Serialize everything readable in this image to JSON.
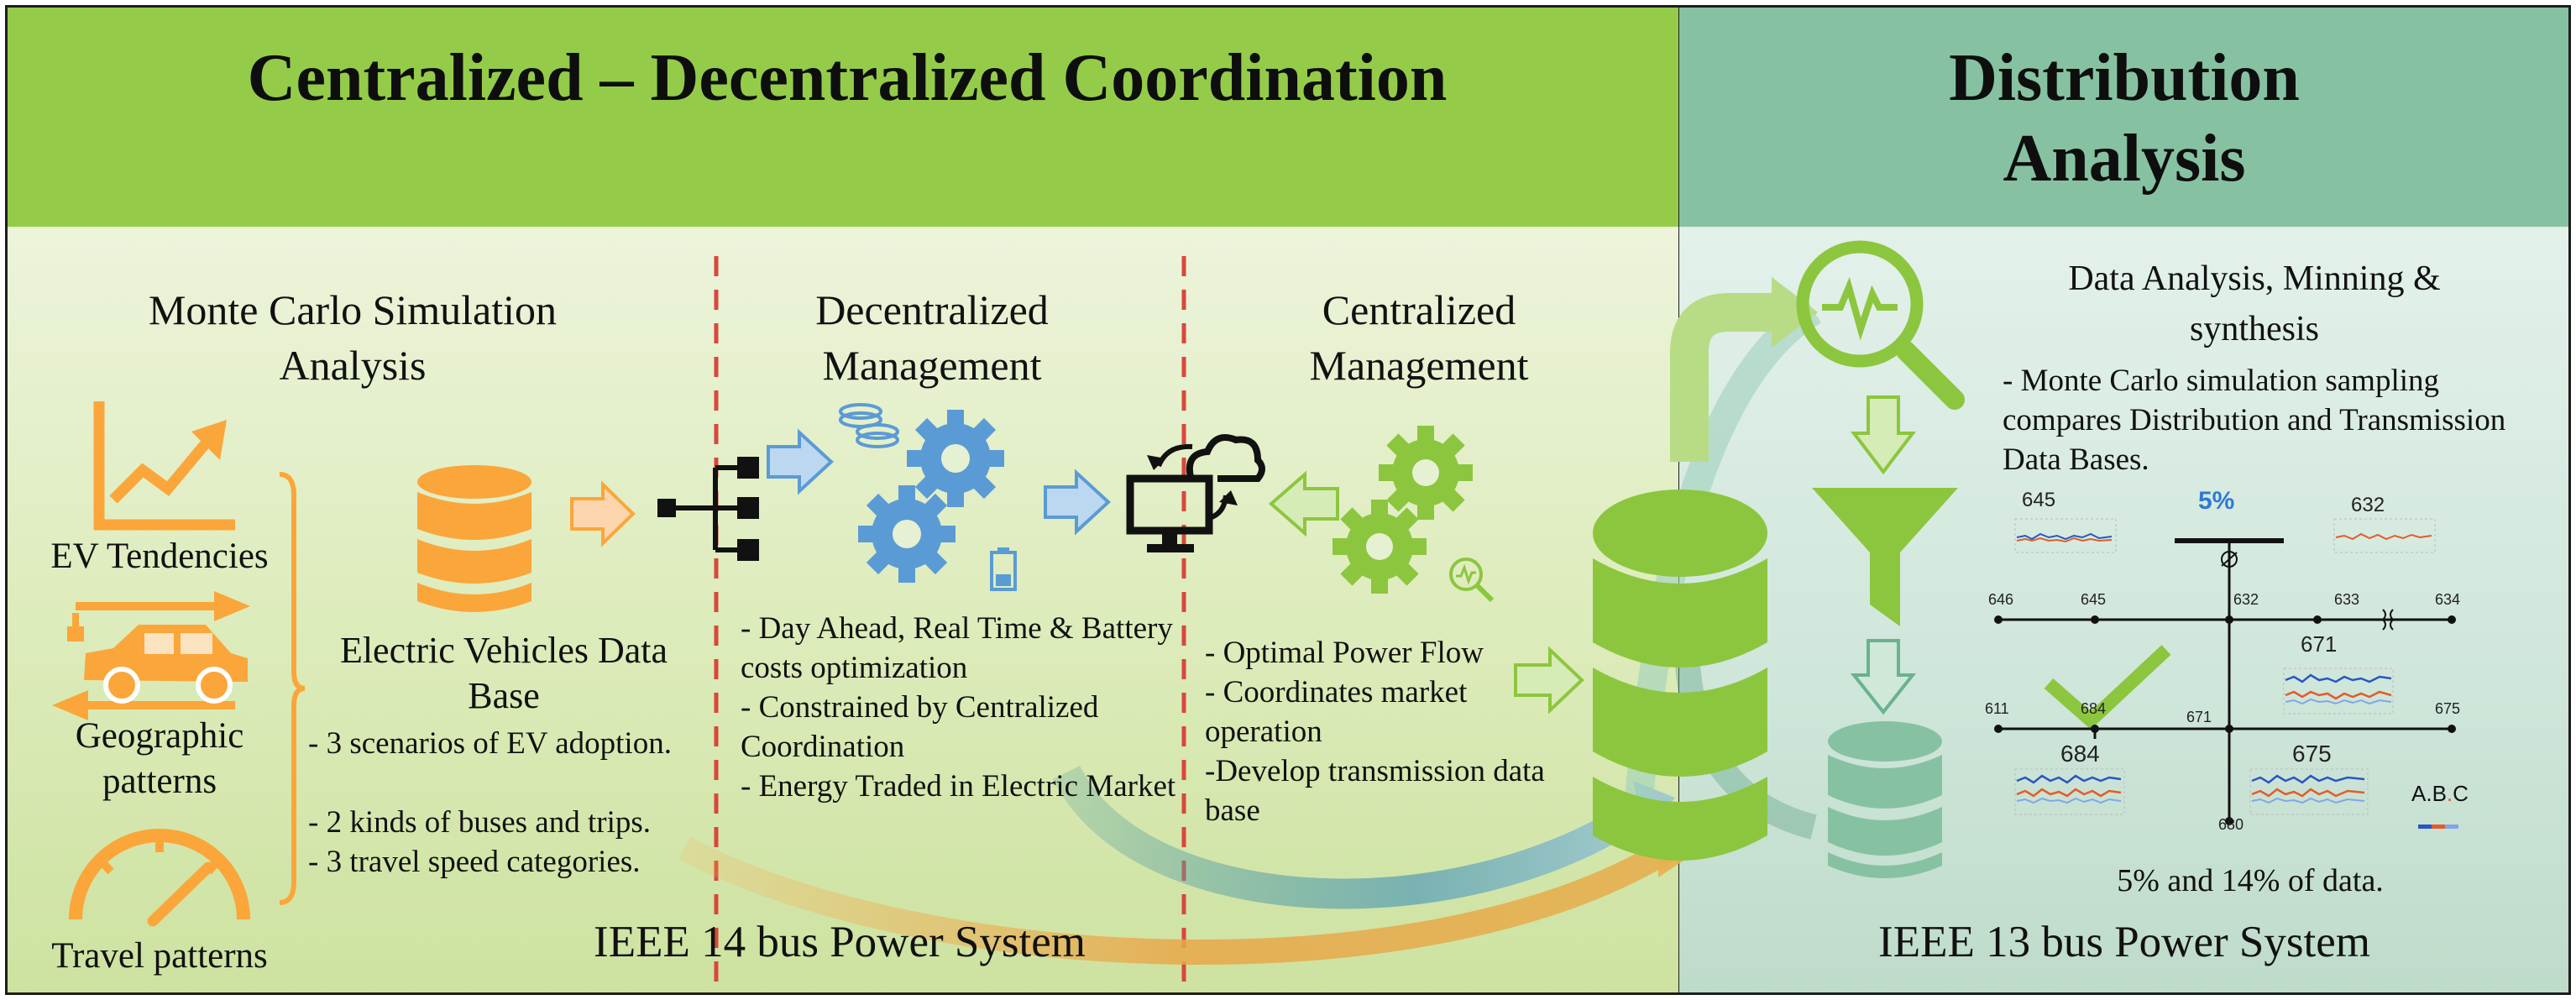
{
  "left_panel": {
    "title": "Centralized – Decentralized Coordination",
    "monte_carlo": {
      "heading": "Monte Carlo Simulation Analysis",
      "inputs": [
        "EV Tendencies",
        "Geographic patterns",
        "Travel patterns"
      ],
      "database_title": "Electric Vehicles Data Base",
      "bullets": [
        "- 3 scenarios of EV adoption.",
        "- 2 kinds of buses and trips.",
        "- 3 travel speed categories."
      ]
    },
    "decentralized": {
      "heading": "Decentralized Management",
      "bullets": [
        "- Day Ahead, Real Time & Battery costs optimization",
        "- Constrained by Centralized Coordination",
        "- Energy Traded in Electric Market"
      ]
    },
    "centralized": {
      "heading": "Centralized Management",
      "bullets": [
        "- Optimal Power Flow",
        "- Coordinates market operation",
        "-Develop transmission data base"
      ]
    },
    "footer": "IEEE 14 bus Power System"
  },
  "right_panel": {
    "title": "Distribution Analysis",
    "analysis_heading": "Data Analysis, Minning & synthesis",
    "analysis_text": "- Monte Carlo simulation sampling compares Distribution and Transmission Data Bases.",
    "network": {
      "top_percent": "5%",
      "node_labels": [
        "645",
        "632",
        "646",
        "645",
        "632",
        "633",
        "634",
        "671",
        "611",
        "684",
        "671",
        "675",
        "684",
        "675",
        "680"
      ],
      "phase_labels": [
        "A",
        "B",
        "C"
      ]
    },
    "result_text": "5% and 14% of data.",
    "footer": "IEEE 13 bus Power System"
  },
  "colors": {
    "left_header": "#94cc4a",
    "right_header": "#86c2a2",
    "orange_icon": "#fba63a",
    "blue_icon": "#5b9bd5",
    "green_icon": "#8cc63e",
    "teal_icon": "#86c2a2",
    "divider_dash": "#d9473b"
  }
}
